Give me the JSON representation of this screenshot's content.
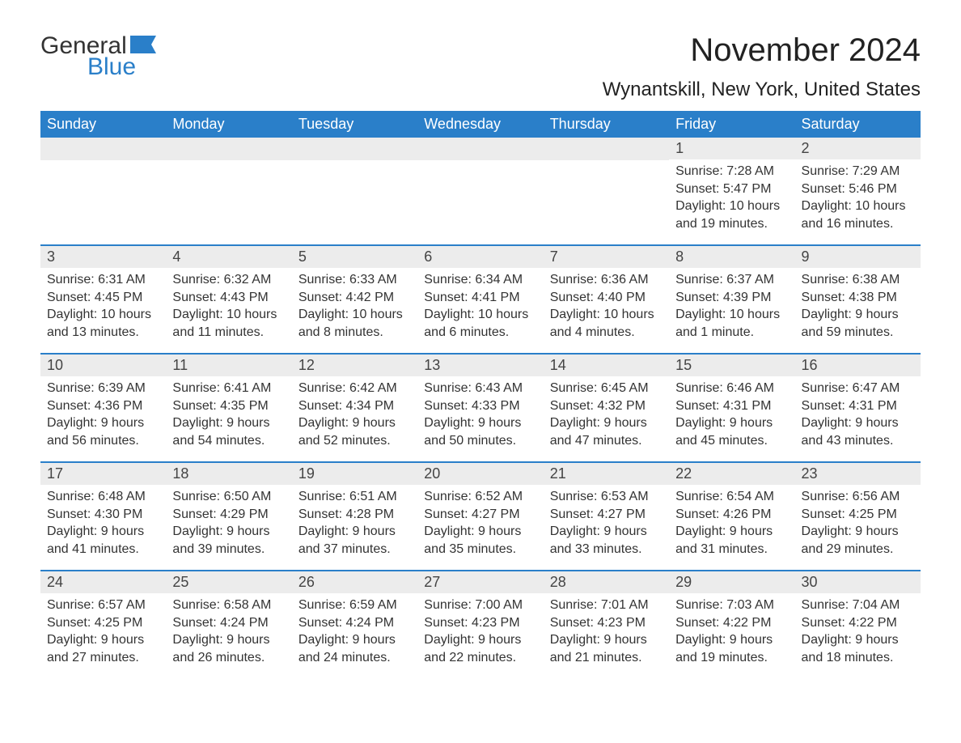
{
  "brand": {
    "line1": "General",
    "line2": "Blue",
    "logo_color": "#2a7fc9"
  },
  "title": "November 2024",
  "location": "Wynantskill, New York, United States",
  "colors": {
    "header_bg": "#2a7fc9",
    "header_text": "#ffffff",
    "daynum_bg": "#ececec",
    "row_border": "#2a7fc9",
    "body_text": "#333333",
    "background": "#ffffff"
  },
  "layout": {
    "columns": 7,
    "rows": 5,
    "first_day_column": 5
  },
  "day_names": [
    "Sunday",
    "Monday",
    "Tuesday",
    "Wednesday",
    "Thursday",
    "Friday",
    "Saturday"
  ],
  "days": [
    {
      "n": 1,
      "sunrise": "7:28 AM",
      "sunset": "5:47 PM",
      "daylight": "10 hours and 19 minutes."
    },
    {
      "n": 2,
      "sunrise": "7:29 AM",
      "sunset": "5:46 PM",
      "daylight": "10 hours and 16 minutes."
    },
    {
      "n": 3,
      "sunrise": "6:31 AM",
      "sunset": "4:45 PM",
      "daylight": "10 hours and 13 minutes."
    },
    {
      "n": 4,
      "sunrise": "6:32 AM",
      "sunset": "4:43 PM",
      "daylight": "10 hours and 11 minutes."
    },
    {
      "n": 5,
      "sunrise": "6:33 AM",
      "sunset": "4:42 PM",
      "daylight": "10 hours and 8 minutes."
    },
    {
      "n": 6,
      "sunrise": "6:34 AM",
      "sunset": "4:41 PM",
      "daylight": "10 hours and 6 minutes."
    },
    {
      "n": 7,
      "sunrise": "6:36 AM",
      "sunset": "4:40 PM",
      "daylight": "10 hours and 4 minutes."
    },
    {
      "n": 8,
      "sunrise": "6:37 AM",
      "sunset": "4:39 PM",
      "daylight": "10 hours and 1 minute."
    },
    {
      "n": 9,
      "sunrise": "6:38 AM",
      "sunset": "4:38 PM",
      "daylight": "9 hours and 59 minutes."
    },
    {
      "n": 10,
      "sunrise": "6:39 AM",
      "sunset": "4:36 PM",
      "daylight": "9 hours and 56 minutes."
    },
    {
      "n": 11,
      "sunrise": "6:41 AM",
      "sunset": "4:35 PM",
      "daylight": "9 hours and 54 minutes."
    },
    {
      "n": 12,
      "sunrise": "6:42 AM",
      "sunset": "4:34 PM",
      "daylight": "9 hours and 52 minutes."
    },
    {
      "n": 13,
      "sunrise": "6:43 AM",
      "sunset": "4:33 PM",
      "daylight": "9 hours and 50 minutes."
    },
    {
      "n": 14,
      "sunrise": "6:45 AM",
      "sunset": "4:32 PM",
      "daylight": "9 hours and 47 minutes."
    },
    {
      "n": 15,
      "sunrise": "6:46 AM",
      "sunset": "4:31 PM",
      "daylight": "9 hours and 45 minutes."
    },
    {
      "n": 16,
      "sunrise": "6:47 AM",
      "sunset": "4:31 PM",
      "daylight": "9 hours and 43 minutes."
    },
    {
      "n": 17,
      "sunrise": "6:48 AM",
      "sunset": "4:30 PM",
      "daylight": "9 hours and 41 minutes."
    },
    {
      "n": 18,
      "sunrise": "6:50 AM",
      "sunset": "4:29 PM",
      "daylight": "9 hours and 39 minutes."
    },
    {
      "n": 19,
      "sunrise": "6:51 AM",
      "sunset": "4:28 PM",
      "daylight": "9 hours and 37 minutes."
    },
    {
      "n": 20,
      "sunrise": "6:52 AM",
      "sunset": "4:27 PM",
      "daylight": "9 hours and 35 minutes."
    },
    {
      "n": 21,
      "sunrise": "6:53 AM",
      "sunset": "4:27 PM",
      "daylight": "9 hours and 33 minutes."
    },
    {
      "n": 22,
      "sunrise": "6:54 AM",
      "sunset": "4:26 PM",
      "daylight": "9 hours and 31 minutes."
    },
    {
      "n": 23,
      "sunrise": "6:56 AM",
      "sunset": "4:25 PM",
      "daylight": "9 hours and 29 minutes."
    },
    {
      "n": 24,
      "sunrise": "6:57 AM",
      "sunset": "4:25 PM",
      "daylight": "9 hours and 27 minutes."
    },
    {
      "n": 25,
      "sunrise": "6:58 AM",
      "sunset": "4:24 PM",
      "daylight": "9 hours and 26 minutes."
    },
    {
      "n": 26,
      "sunrise": "6:59 AM",
      "sunset": "4:24 PM",
      "daylight": "9 hours and 24 minutes."
    },
    {
      "n": 27,
      "sunrise": "7:00 AM",
      "sunset": "4:23 PM",
      "daylight": "9 hours and 22 minutes."
    },
    {
      "n": 28,
      "sunrise": "7:01 AM",
      "sunset": "4:23 PM",
      "daylight": "9 hours and 21 minutes."
    },
    {
      "n": 29,
      "sunrise": "7:03 AM",
      "sunset": "4:22 PM",
      "daylight": "9 hours and 19 minutes."
    },
    {
      "n": 30,
      "sunrise": "7:04 AM",
      "sunset": "4:22 PM",
      "daylight": "9 hours and 18 minutes."
    }
  ],
  "labels": {
    "sunrise": "Sunrise:",
    "sunset": "Sunset:",
    "daylight": "Daylight:"
  }
}
